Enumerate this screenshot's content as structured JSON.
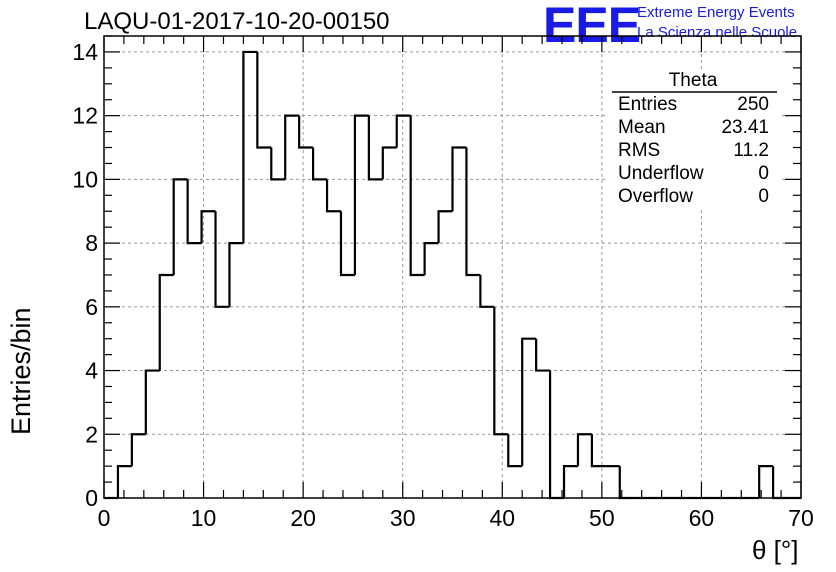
{
  "header": {
    "run_title": "LAQU-01-2017-10-20-00150",
    "logo": "EEE",
    "logo_line1": "Extreme Energy Events",
    "logo_line2": "La Scienza nelle Scuole"
  },
  "stats": {
    "name": "Theta",
    "rows": [
      {
        "label": "Entries",
        "value": "250"
      },
      {
        "label": "Mean",
        "value": "23.41"
      },
      {
        "label": "RMS",
        "value": "11.2"
      },
      {
        "label": "Underflow",
        "value": "0"
      },
      {
        "label": "Overflow",
        "value": "0"
      }
    ]
  },
  "colors": {
    "line": "#000000",
    "grid": "#999999",
    "logo": "#1a1ae6"
  },
  "chart_data": {
    "type": "bar",
    "style": "step-histogram",
    "title": "LAQU-01-2017-10-20-00150",
    "xlabel": "θ [°]",
    "ylabel": "Entries/bin",
    "xlim": [
      0,
      70
    ],
    "ylim": [
      0,
      14.5
    ],
    "bin_width": 1.4,
    "bin_edges_start": 0,
    "values": [
      0,
      1,
      2,
      4,
      7,
      10,
      8,
      9,
      6,
      8,
      14,
      11,
      10,
      12,
      11,
      10,
      9,
      7,
      12,
      10,
      11,
      12,
      7,
      8,
      9,
      11,
      7,
      6,
      2,
      1,
      5,
      4,
      0,
      1,
      2,
      1,
      1,
      0,
      0,
      0,
      0,
      0,
      0,
      0,
      0,
      0,
      0,
      1,
      0,
      0
    ],
    "x_ticks": [
      0,
      10,
      20,
      30,
      40,
      50,
      60,
      70
    ],
    "y_ticks": [
      0,
      2,
      4,
      6,
      8,
      10,
      12,
      14
    ],
    "grid": true,
    "legend": "top-right"
  }
}
